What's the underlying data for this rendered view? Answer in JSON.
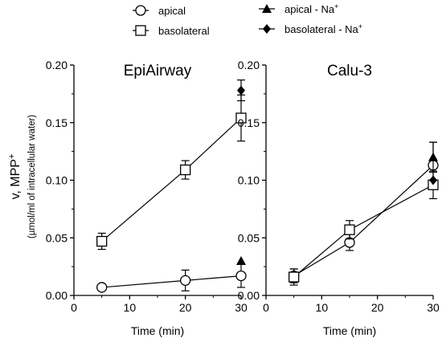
{
  "legend": [
    {
      "label": "apical",
      "marker": "circle-open"
    },
    {
      "label": "basolateral",
      "marker": "square-open"
    },
    {
      "label": "apical - Na",
      "sup": "+",
      "marker": "triangle-filled"
    },
    {
      "label": "basolateral - Na",
      "sup": "+",
      "marker": "diamond-filled"
    }
  ],
  "y_label_main": "v, MPP",
  "y_label_main_sup": "+",
  "y_label_sub": "(µmol/ml of intracellular water)",
  "chart_data": [
    {
      "type": "line",
      "title": "EpiAirway",
      "xlabel": "Time (min)",
      "xlim": [
        0,
        30
      ],
      "xticks": [
        "0",
        "10",
        "20",
        "30"
      ],
      "ylim": [
        0,
        0.2
      ],
      "yticks": [
        "0.00",
        "0.05",
        "0.10",
        "0.15",
        "0.20"
      ],
      "series": [
        {
          "name": "apical",
          "marker": "circle-open",
          "connected": true,
          "x": [
            5,
            20,
            30
          ],
          "y": [
            0.007,
            0.013,
            0.017
          ],
          "err": [
            0.002,
            0.009,
            0.01
          ]
        },
        {
          "name": "basolateral",
          "marker": "square-open",
          "connected": true,
          "x": [
            5,
            20,
            30
          ],
          "y": [
            0.047,
            0.109,
            0.154
          ],
          "err": [
            0.007,
            0.008,
            0.02
          ]
        },
        {
          "name": "apical - Na+",
          "marker": "triangle-filled",
          "connected": false,
          "x": [
            30
          ],
          "y": [
            0.03
          ],
          "err": [
            0
          ]
        },
        {
          "name": "basolateral - Na+",
          "marker": "diamond-filled",
          "connected": false,
          "x": [
            30
          ],
          "y": [
            0.178
          ],
          "err": [
            0.009
          ]
        }
      ]
    },
    {
      "type": "line",
      "title": "Calu-3",
      "xlabel": "Time (min)",
      "xlim": [
        0,
        30
      ],
      "xticks": [
        "0",
        "10",
        "20",
        "30"
      ],
      "ylim": [
        0,
        0.2
      ],
      "yticks": [
        "0.00",
        "0.05",
        "0.10",
        "0.15",
        "0.20"
      ],
      "series": [
        {
          "name": "apical",
          "marker": "circle-open",
          "connected": true,
          "x": [
            5,
            15,
            30
          ],
          "y": [
            0.017,
            0.046,
            0.113
          ],
          "err": [
            0.006,
            0.007,
            0.02
          ]
        },
        {
          "name": "basolateral",
          "marker": "square-open",
          "connected": true,
          "x": [
            5,
            15,
            30
          ],
          "y": [
            0.016,
            0.057,
            0.096
          ],
          "err": [
            0.007,
            0.008,
            0.012
          ]
        },
        {
          "name": "apical - Na+",
          "marker": "triangle-filled",
          "connected": false,
          "x": [
            30
          ],
          "y": [
            0.12
          ],
          "err": [
            0.013
          ]
        },
        {
          "name": "basolateral - Na+",
          "marker": "diamond-filled",
          "connected": false,
          "x": [
            30
          ],
          "y": [
            0.1
          ],
          "err": [
            0
          ]
        }
      ]
    }
  ]
}
